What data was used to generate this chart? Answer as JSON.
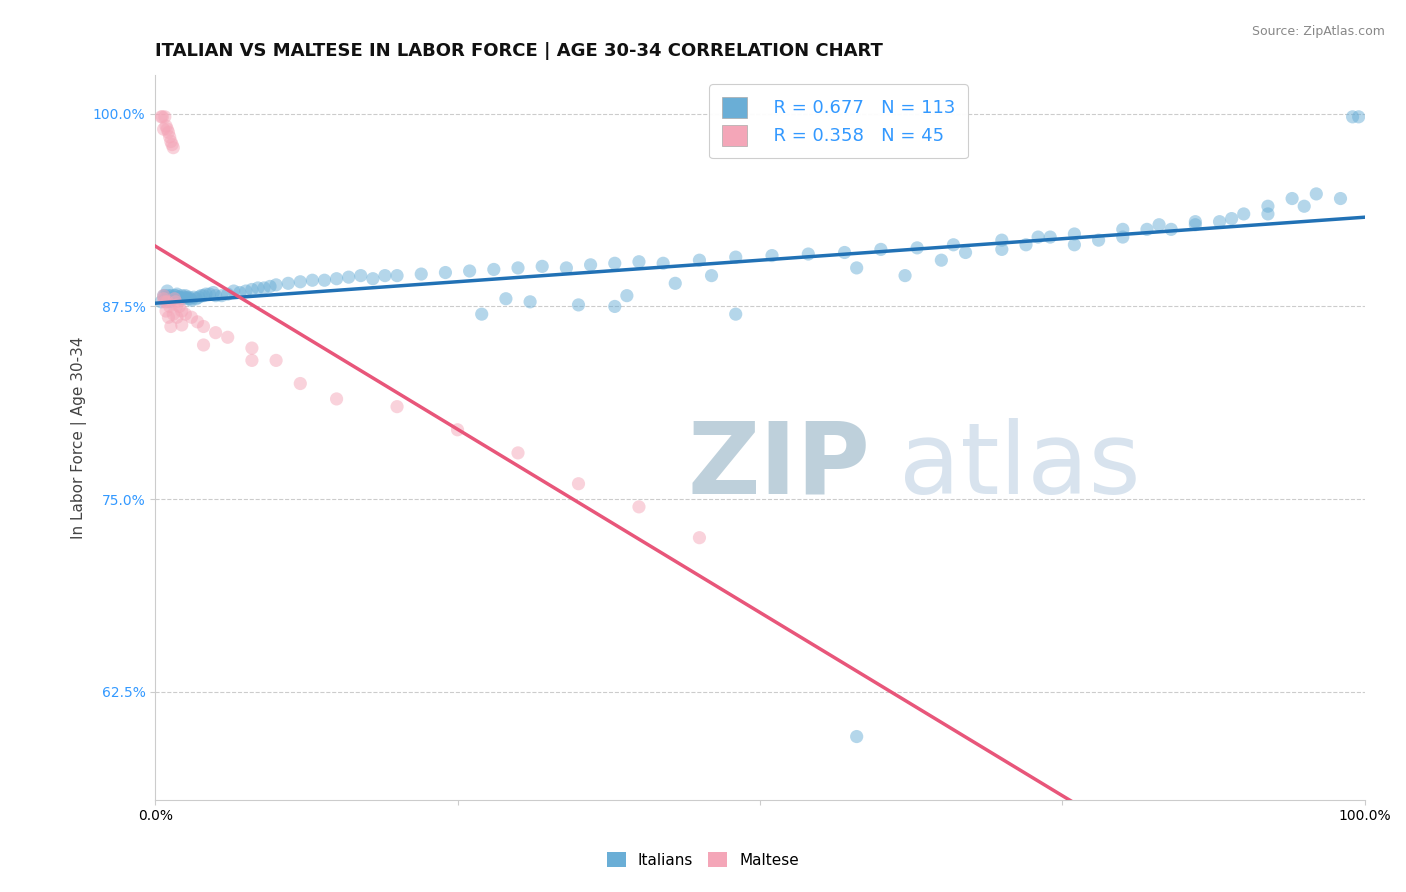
{
  "title": "ITALIAN VS MALTESE IN LABOR FORCE | AGE 30-34 CORRELATION CHART",
  "source_text": "Source: ZipAtlas.com",
  "ylabel": "In Labor Force | Age 30-34",
  "xlim": [
    0.0,
    1.0
  ],
  "ylim": [
    0.555,
    1.025
  ],
  "x_ticks": [
    0.0,
    0.25,
    0.5,
    0.75,
    1.0
  ],
  "x_tick_labels": [
    "0.0%",
    "",
    "",
    "",
    "100.0%"
  ],
  "y_tick_labels": [
    "62.5%",
    "75.0%",
    "87.5%",
    "100.0%"
  ],
  "y_ticks": [
    0.625,
    0.75,
    0.875,
    1.0
  ],
  "grid_color": "#cccccc",
  "background_color": "#ffffff",
  "italians_color": "#6aaed6",
  "maltese_color": "#f4a6b8",
  "italians_line_color": "#2171b5",
  "maltese_line_color": "#e8567a",
  "legend_R_italians": "R = 0.677",
  "legend_N_italians": "N = 113",
  "legend_R_maltese": "R = 0.358",
  "legend_N_maltese": "N = 45",
  "italians_x": [
    0.005,
    0.007,
    0.008,
    0.009,
    0.01,
    0.011,
    0.012,
    0.013,
    0.014,
    0.015,
    0.016,
    0.017,
    0.018,
    0.019,
    0.02,
    0.021,
    0.022,
    0.023,
    0.024,
    0.025,
    0.026,
    0.027,
    0.028,
    0.029,
    0.03,
    0.032,
    0.034,
    0.036,
    0.038,
    0.04,
    0.042,
    0.045,
    0.048,
    0.05,
    0.055,
    0.06,
    0.065,
    0.07,
    0.075,
    0.08,
    0.085,
    0.09,
    0.095,
    0.1,
    0.11,
    0.12,
    0.13,
    0.14,
    0.15,
    0.16,
    0.17,
    0.18,
    0.19,
    0.2,
    0.22,
    0.24,
    0.26,
    0.28,
    0.3,
    0.32,
    0.34,
    0.36,
    0.38,
    0.4,
    0.42,
    0.45,
    0.48,
    0.51,
    0.54,
    0.57,
    0.6,
    0.63,
    0.66,
    0.7,
    0.73,
    0.76,
    0.8,
    0.83,
    0.86,
    0.89,
    0.92,
    0.95,
    0.98,
    0.99,
    0.995,
    0.27,
    0.35,
    0.38,
    0.43,
    0.46,
    0.31,
    0.29,
    0.58,
    0.62,
    0.65,
    0.67,
    0.7,
    0.72,
    0.74,
    0.76,
    0.78,
    0.8,
    0.82,
    0.84,
    0.86,
    0.88,
    0.9,
    0.92,
    0.94,
    0.96,
    0.58,
    0.48,
    0.39
  ],
  "italians_y": [
    0.878,
    0.882,
    0.882,
    0.881,
    0.885,
    0.882,
    0.878,
    0.882,
    0.88,
    0.88,
    0.882,
    0.882,
    0.883,
    0.881,
    0.881,
    0.88,
    0.882,
    0.88,
    0.881,
    0.882,
    0.881,
    0.88,
    0.881,
    0.88,
    0.879,
    0.881,
    0.88,
    0.881,
    0.882,
    0.882,
    0.883,
    0.883,
    0.884,
    0.882,
    0.882,
    0.883,
    0.885,
    0.884,
    0.885,
    0.886,
    0.887,
    0.887,
    0.888,
    0.889,
    0.89,
    0.891,
    0.892,
    0.892,
    0.893,
    0.894,
    0.895,
    0.893,
    0.895,
    0.895,
    0.896,
    0.897,
    0.898,
    0.899,
    0.9,
    0.901,
    0.9,
    0.902,
    0.903,
    0.904,
    0.903,
    0.905,
    0.907,
    0.908,
    0.909,
    0.91,
    0.912,
    0.913,
    0.915,
    0.918,
    0.92,
    0.922,
    0.925,
    0.928,
    0.93,
    0.932,
    0.935,
    0.94,
    0.945,
    0.998,
    0.998,
    0.87,
    0.876,
    0.875,
    0.89,
    0.895,
    0.878,
    0.88,
    0.9,
    0.895,
    0.905,
    0.91,
    0.912,
    0.915,
    0.92,
    0.915,
    0.918,
    0.92,
    0.925,
    0.925,
    0.928,
    0.93,
    0.935,
    0.94,
    0.945,
    0.948,
    0.596,
    0.87,
    0.882
  ],
  "maltese_x": [
    0.005,
    0.006,
    0.007,
    0.007,
    0.007,
    0.008,
    0.008,
    0.009,
    0.009,
    0.01,
    0.01,
    0.011,
    0.011,
    0.012,
    0.012,
    0.013,
    0.013,
    0.014,
    0.015,
    0.015,
    0.016,
    0.017,
    0.018,
    0.018,
    0.02,
    0.022,
    0.022,
    0.025,
    0.03,
    0.035,
    0.04,
    0.04,
    0.05,
    0.06,
    0.08,
    0.08,
    0.1,
    0.12,
    0.15,
    0.2,
    0.25,
    0.3,
    0.35,
    0.4,
    0.45
  ],
  "maltese_y": [
    0.998,
    0.998,
    0.99,
    0.882,
    0.88,
    0.998,
    0.878,
    0.992,
    0.872,
    0.99,
    0.878,
    0.988,
    0.868,
    0.985,
    0.875,
    0.982,
    0.862,
    0.98,
    0.978,
    0.87,
    0.88,
    0.878,
    0.868,
    0.876,
    0.875,
    0.872,
    0.863,
    0.87,
    0.868,
    0.865,
    0.862,
    0.85,
    0.858,
    0.855,
    0.848,
    0.84,
    0.84,
    0.825,
    0.815,
    0.81,
    0.795,
    0.78,
    0.76,
    0.745,
    0.725
  ],
  "watermark_zip": "ZIP",
  "watermark_atlas": "atlas",
  "watermark_color": "#c8d8e8",
  "title_fontsize": 13,
  "axis_label_fontsize": 11,
  "tick_fontsize": 10,
  "marker_size": 90,
  "marker_alpha": 0.5,
  "line_width": 2.5
}
